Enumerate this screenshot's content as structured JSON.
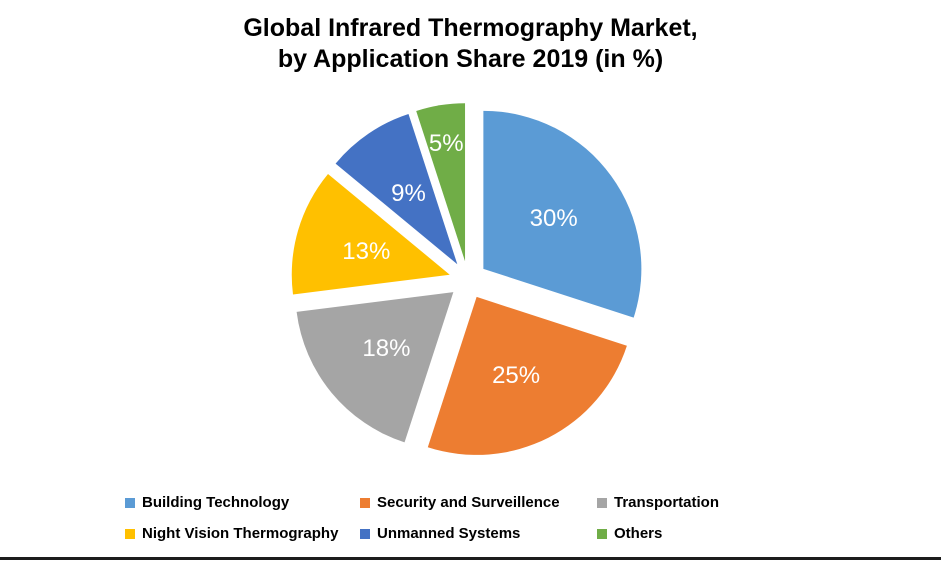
{
  "title": {
    "line1": "Global Infrared Thermography Market,",
    "line2": "by Application Share 2019 (in %)"
  },
  "chart_data": {
    "type": "pie",
    "title": "Global Infrared Thermography Market, by Application Share 2019 (in %)",
    "unit": "%",
    "slices": [
      {
        "name": "Building Technology",
        "value": 30,
        "label": "30%",
        "color": "#5B9BD5"
      },
      {
        "name": "Security and Surveillence",
        "value": 25,
        "label": "25%",
        "color": "#ED7D31"
      },
      {
        "name": "Transportation",
        "value": 18,
        "label": "18%",
        "color": "#A5A5A5"
      },
      {
        "name": "Night Vision Thermography",
        "value": 13,
        "label": "13%",
        "color": "#FFC000"
      },
      {
        "name": "Unmanned Systems",
        "value": 9,
        "label": "9%",
        "color": "#4472C4"
      },
      {
        "name": "Others",
        "value": 5,
        "label": "5%",
        "color": "#70AD47"
      }
    ],
    "layout": {
      "start_angle_deg": 0,
      "direction": "clockwise",
      "exploded": true,
      "data_label_color": "#FFFFFF",
      "legend_position": "bottom",
      "legend_columns": 3
    }
  }
}
